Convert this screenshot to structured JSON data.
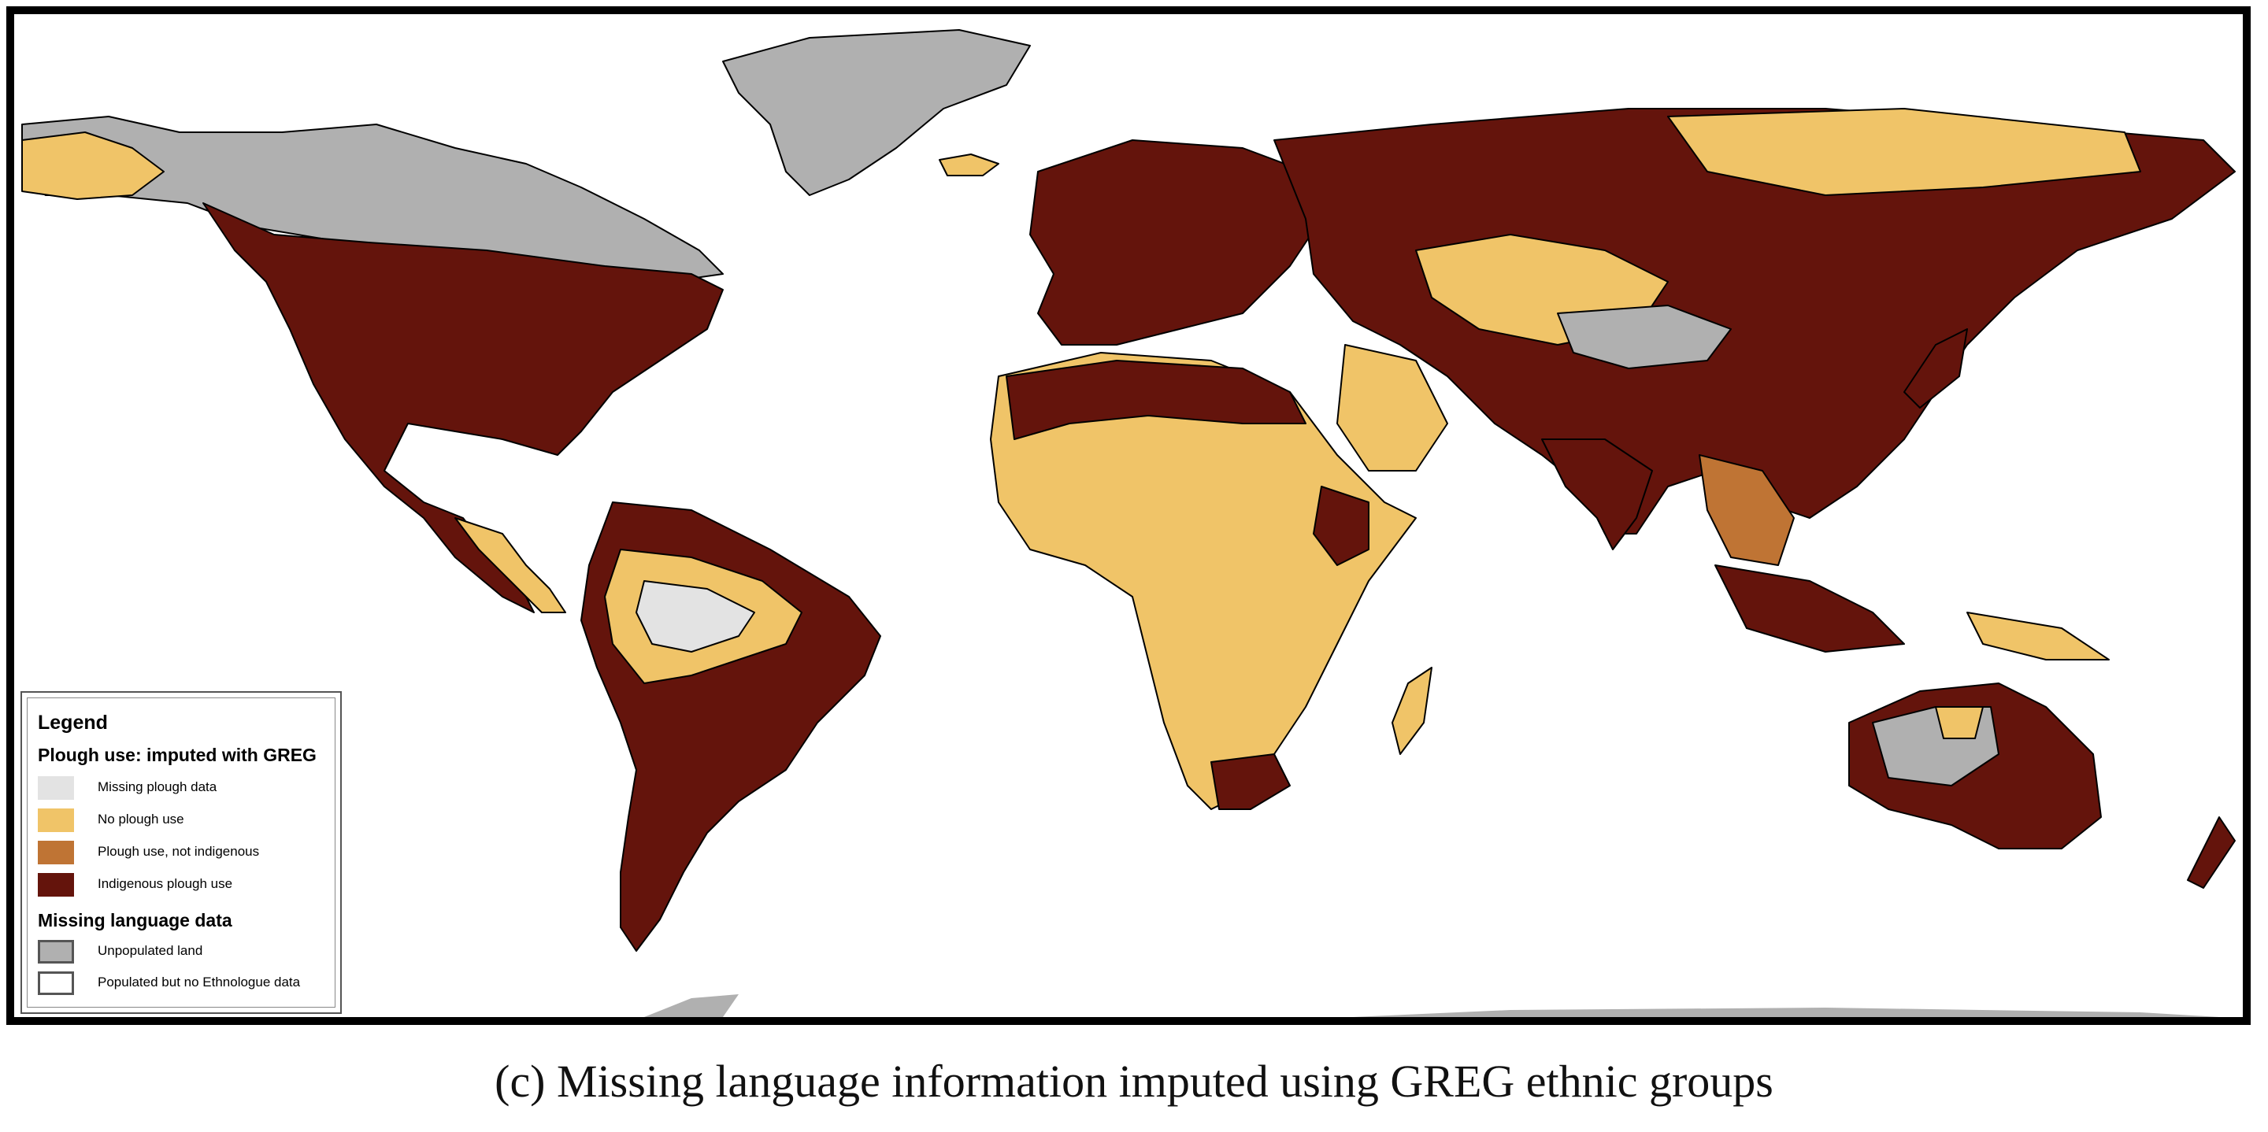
{
  "caption": "(c) Missing language information imputed using GREG ethnic groups",
  "legend": {
    "title": "Legend",
    "section1_title": "Plough use: imputed with GREG",
    "section1_items": [
      {
        "label": "Missing plough data",
        "color": "#e3e3e3"
      },
      {
        "label": "No plough use",
        "color": "#f0c468"
      },
      {
        "label": "Plough use, not indigenous",
        "color": "#bf7434"
      },
      {
        "label": "Indigenous plough use",
        "color": "#64140c"
      }
    ],
    "section2_title": "Missing language data",
    "section2_items": [
      {
        "label": "Unpopulated land",
        "color": "#b0b0b0",
        "outlined": true
      },
      {
        "label": "Populated but no Ethnologue data",
        "color": "#ffffff",
        "outlined": true
      }
    ]
  },
  "colors": {
    "indigenous": "#64140c",
    "no_plough": "#f0c468",
    "not_indigenous": "#bf7434",
    "missing": "#e3e3e3",
    "unpopulated": "#b0b0b0",
    "border": "#000000"
  }
}
